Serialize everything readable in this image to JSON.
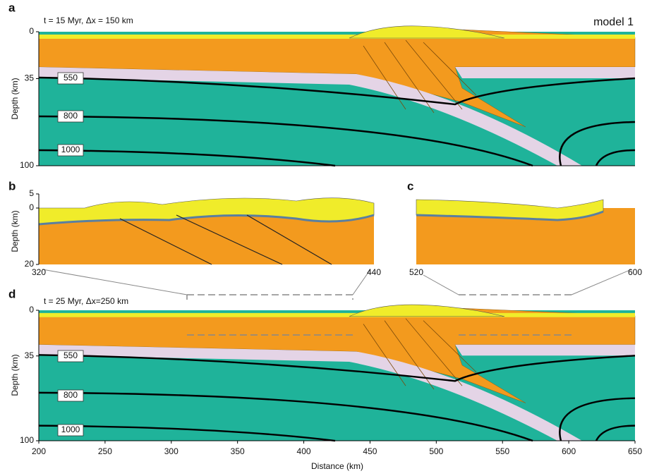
{
  "panels": [
    {
      "label": "a",
      "annotation": "t = 15 Myr, Δx = 150 km",
      "model": "model 1",
      "y_label": "Depth (km)",
      "ylim": [
        0,
        100
      ],
      "yticks": [
        0,
        35,
        100
      ],
      "isotherms": [
        550,
        800,
        1000
      ]
    },
    {
      "label": "b",
      "y_label": "Depth (km)",
      "ylim": [
        -5,
        20
      ],
      "yticks": [
        {
          "value": -5,
          "label": "5"
        },
        0,
        20
      ],
      "xlim": [
        320,
        440
      ],
      "xticks": [
        320,
        440
      ]
    },
    {
      "label": "c",
      "xlim": [
        520,
        600
      ],
      "xticks": [
        520,
        600
      ]
    },
    {
      "label": "d",
      "annotation": "t = 25 Myr, Δx=250 km",
      "y_label": "Depth (km)",
      "x_label": "Distance (km)",
      "ylim": [
        0,
        100
      ],
      "yticks": [
        0,
        35,
        100
      ],
      "xlim": [
        200,
        650
      ],
      "xticks": [
        200,
        250,
        300,
        350,
        400,
        450,
        500,
        550,
        600,
        650
      ],
      "isotherms": [
        550,
        800,
        1000
      ]
    }
  ]
}
